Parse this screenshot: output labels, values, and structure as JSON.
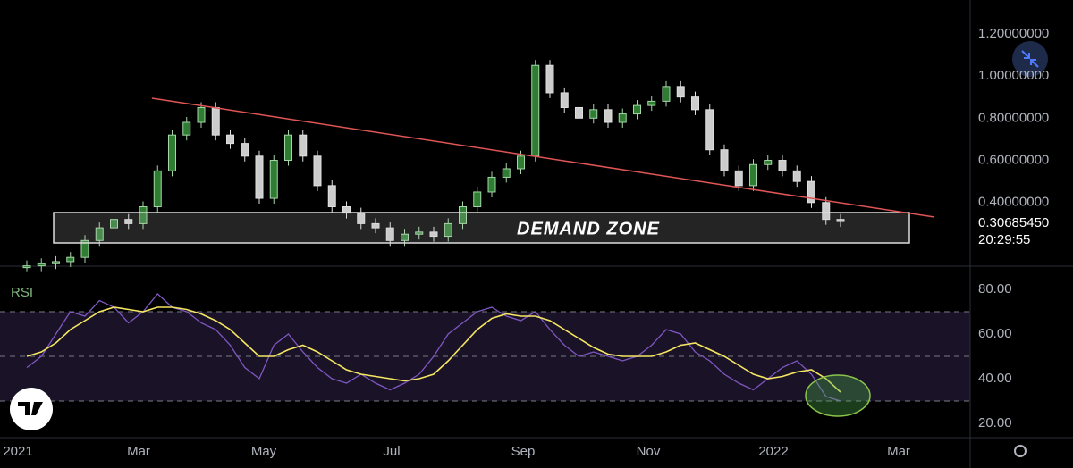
{
  "chart_data": {
    "type": "candlestick",
    "annotation": "DEMAND ZONE",
    "last_price": "0.30685450",
    "countdown": "20:29:55",
    "x_labels": [
      "2021",
      "Mar",
      "May",
      "Jul",
      "Sep",
      "Nov",
      "2022",
      "Mar"
    ],
    "ylim": [
      0.09,
      1.36
    ],
    "yticks": [
      {
        "value": 1.2,
        "label": "1.20000000"
      },
      {
        "value": 1.0,
        "label": "1.00000000"
      },
      {
        "value": 0.8,
        "label": "0.80000000"
      },
      {
        "value": 0.6,
        "label": "0.60000000"
      },
      {
        "value": 0.4,
        "label": "0.40000000"
      }
    ],
    "values": [
      0.1,
      0.11,
      0.12,
      0.14,
      0.22,
      0.28,
      0.32,
      0.3,
      0.38,
      0.55,
      0.72,
      0.78,
      0.85,
      0.72,
      0.68,
      0.62,
      0.42,
      0.6,
      0.72,
      0.62,
      0.48,
      0.38,
      0.35,
      0.3,
      0.28,
      0.22,
      0.25,
      0.26,
      0.24,
      0.3,
      0.38,
      0.45,
      0.52,
      0.56,
      0.62,
      1.05,
      0.92,
      0.85,
      0.8,
      0.84,
      0.78,
      0.82,
      0.86,
      0.88,
      0.95,
      0.9,
      0.84,
      0.65,
      0.55,
      0.48,
      0.58,
      0.6,
      0.55,
      0.5,
      0.4,
      0.32,
      0.31
    ],
    "rsi": {
      "title": "RSI",
      "ylim": [
        13.6,
        89.6
      ],
      "yticks": [
        {
          "value": 80,
          "label": "80.00"
        },
        {
          "value": 60,
          "label": "60.00"
        },
        {
          "value": 40,
          "label": "40.00"
        },
        {
          "value": 20,
          "label": "20.00"
        }
      ],
      "levels": [
        70,
        50,
        30
      ],
      "series": [
        {
          "color": "#7e57c2",
          "values": [
            45,
            50,
            60,
            70,
            68,
            75,
            72,
            65,
            70,
            78,
            72,
            70,
            65,
            62,
            55,
            45,
            40,
            55,
            60,
            52,
            45,
            40,
            38,
            42,
            38,
            35,
            38,
            42,
            50,
            60,
            65,
            70,
            72,
            68,
            66,
            70,
            62,
            55,
            50,
            52,
            50,
            48,
            50,
            55,
            62,
            60,
            52,
            48,
            42,
            38,
            35,
            40,
            45,
            48,
            42,
            32,
            30
          ]
        },
        {
          "color": "#f5e663",
          "values": [
            50,
            52,
            56,
            62,
            66,
            70,
            72,
            71,
            70,
            72,
            72,
            71,
            69,
            66,
            62,
            56,
            50,
            50,
            53,
            55,
            52,
            48,
            44,
            42,
            41,
            40,
            39,
            40,
            42,
            48,
            55,
            62,
            67,
            69,
            68,
            68,
            66,
            62,
            58,
            54,
            51,
            50,
            50,
            50,
            52,
            55,
            56,
            53,
            50,
            46,
            42,
            40,
            41,
            43,
            44,
            40,
            34
          ]
        }
      ]
    }
  }
}
